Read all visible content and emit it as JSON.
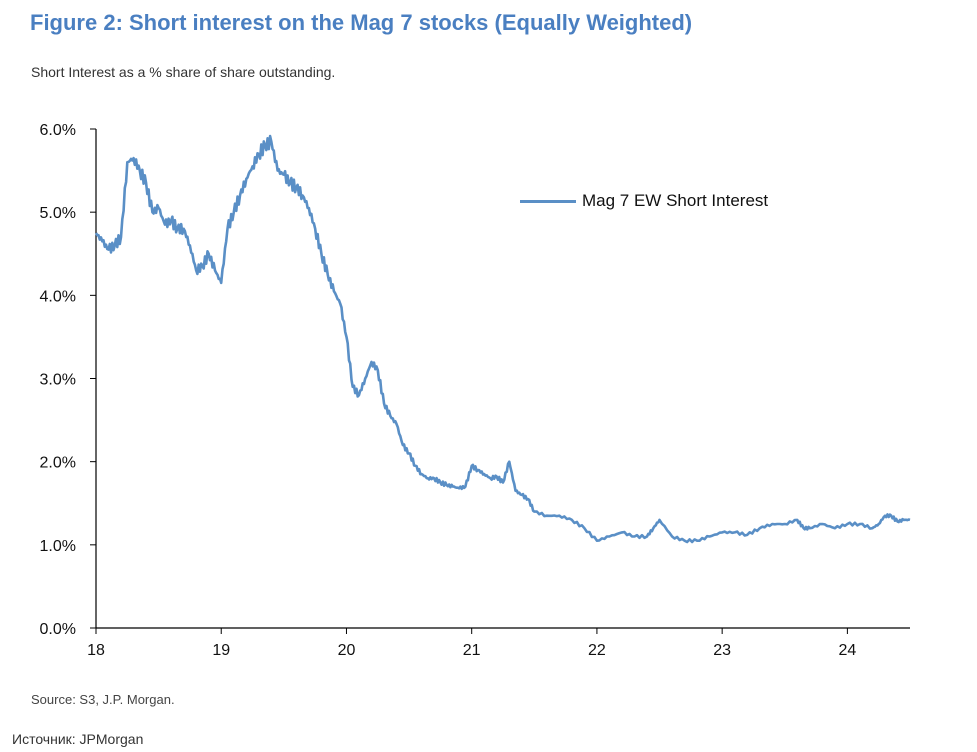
{
  "title": "Figure 2: Short interest on the Mag 7 stocks (Equally Weighted)",
  "subtitle": "Short Interest as a % share of share outstanding.",
  "source": "Source: S3, J.P. Morgan.",
  "caption": "Источник: JPMorgan",
  "colors": {
    "title": "#4a7fc1",
    "line": "#5a8fc6",
    "axis": "#000000"
  },
  "chart_data": {
    "type": "line",
    "title": "Figure 2: Short interest on the Mag 7 stocks (Equally Weighted)",
    "xlabel": "",
    "ylabel": "Short Interest as a % share of share outstanding.",
    "xlim": [
      18,
      24.5
    ],
    "ylim": [
      0,
      6
    ],
    "yticks": [
      0,
      1,
      2,
      3,
      4,
      5,
      6
    ],
    "ytick_labels": [
      "0.0%",
      "1.0%",
      "2.0%",
      "3.0%",
      "4.0%",
      "5.0%",
      "6.0%"
    ],
    "xticks": [
      18,
      19,
      20,
      21,
      22,
      23,
      24
    ],
    "xtick_labels": [
      "18",
      "19",
      "20",
      "21",
      "22",
      "23",
      "24"
    ],
    "grid": false,
    "legend": "top-right",
    "series": [
      {
        "name": "Mag 7 EW Short Interest",
        "x": [
          18.0,
          18.05,
          18.1,
          18.15,
          18.2,
          18.25,
          18.3,
          18.35,
          18.4,
          18.45,
          18.5,
          18.55,
          18.6,
          18.65,
          18.7,
          18.75,
          18.8,
          18.85,
          18.9,
          18.95,
          19.0,
          19.05,
          19.1,
          19.15,
          19.2,
          19.25,
          19.3,
          19.35,
          19.4,
          19.45,
          19.5,
          19.55,
          19.6,
          19.65,
          19.7,
          19.75,
          19.8,
          19.85,
          19.9,
          19.95,
          20.0,
          20.05,
          20.1,
          20.15,
          20.2,
          20.25,
          20.3,
          20.35,
          20.4,
          20.45,
          20.5,
          20.55,
          20.6,
          20.65,
          20.7,
          20.75,
          20.8,
          20.85,
          20.9,
          20.95,
          21.0,
          21.05,
          21.1,
          21.15,
          21.2,
          21.25,
          21.3,
          21.35,
          21.4,
          21.45,
          21.5,
          21.6,
          21.7,
          21.8,
          21.9,
          22.0,
          22.1,
          22.2,
          22.3,
          22.4,
          22.45,
          22.5,
          22.6,
          22.7,
          22.8,
          22.9,
          23.0,
          23.1,
          23.2,
          23.3,
          23.4,
          23.5,
          23.6,
          23.65,
          23.7,
          23.8,
          23.9,
          24.0,
          24.1,
          24.2,
          24.25,
          24.3,
          24.35,
          24.4,
          24.45,
          24.5
        ],
        "values": [
          4.75,
          4.65,
          4.55,
          4.6,
          4.7,
          5.6,
          5.65,
          5.5,
          5.35,
          5.0,
          5.05,
          4.85,
          4.9,
          4.8,
          4.8,
          4.6,
          4.3,
          4.35,
          4.5,
          4.3,
          4.15,
          4.8,
          5.0,
          5.2,
          5.4,
          5.55,
          5.7,
          5.8,
          5.85,
          5.5,
          5.45,
          5.35,
          5.3,
          5.2,
          5.05,
          4.8,
          4.5,
          4.25,
          4.05,
          3.9,
          3.5,
          2.9,
          2.8,
          3.0,
          3.2,
          3.1,
          2.7,
          2.55,
          2.45,
          2.2,
          2.1,
          1.95,
          1.85,
          1.8,
          1.8,
          1.75,
          1.72,
          1.7,
          1.68,
          1.7,
          1.95,
          1.9,
          1.85,
          1.8,
          1.82,
          1.75,
          2.0,
          1.65,
          1.6,
          1.55,
          1.4,
          1.35,
          1.35,
          1.3,
          1.2,
          1.05,
          1.1,
          1.15,
          1.1,
          1.1,
          1.2,
          1.3,
          1.1,
          1.05,
          1.05,
          1.1,
          1.15,
          1.15,
          1.12,
          1.2,
          1.25,
          1.25,
          1.3,
          1.2,
          1.2,
          1.25,
          1.2,
          1.25,
          1.25,
          1.2,
          1.25,
          1.35,
          1.35,
          1.28,
          1.3,
          1.3
        ]
      }
    ]
  }
}
